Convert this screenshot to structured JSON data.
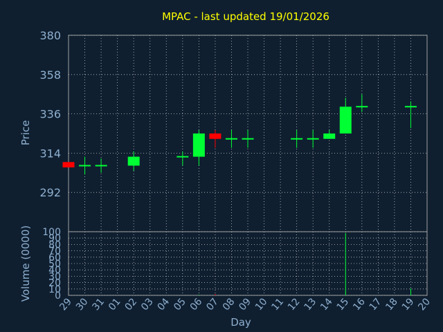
{
  "title": "MPAC - last updated 19/01/2026",
  "chart_data": {
    "type": "candlestick",
    "ylabel": "Price",
    "ylim": [
      270,
      380
    ],
    "yticks": [
      "380",
      "358",
      "336",
      "314",
      "292"
    ],
    "volume_ylabel": "Volume (0000)",
    "volume_ylim": [
      0,
      100
    ],
    "volume_yticks": [
      "100",
      "90",
      "80",
      "70",
      "60",
      "50",
      "40",
      "30",
      "20",
      "10",
      "0"
    ],
    "xlabel": "Day",
    "xticks": [
      "29",
      "30",
      "31",
      "01",
      "02",
      "03",
      "04",
      "05",
      "06",
      "07",
      "08",
      "09",
      "10",
      "11",
      "12",
      "13",
      "14",
      "15",
      "16",
      "17",
      "18",
      "19",
      "20"
    ],
    "candles": [
      {
        "day": "29",
        "open": 309,
        "close": 306,
        "high": 309,
        "low": 306,
        "volume": 0
      },
      {
        "day": "30",
        "open": 307,
        "close": 307,
        "high": 312,
        "low": 302,
        "volume": 0
      },
      {
        "day": "31",
        "open": 307,
        "close": 307,
        "high": 311,
        "low": 303,
        "volume": 0
      },
      {
        "day": "02",
        "open": 307,
        "close": 312,
        "high": 315,
        "low": 304,
        "volume": 0
      },
      {
        "day": "05",
        "open": 312,
        "close": 312,
        "high": 315,
        "low": 307,
        "volume": 0
      },
      {
        "day": "06",
        "open": 312,
        "close": 325,
        "high": 327,
        "low": 307,
        "volume": 1
      },
      {
        "day": "07",
        "open": 325,
        "close": 322,
        "high": 327,
        "low": 317,
        "volume": 2
      },
      {
        "day": "08",
        "open": 322,
        "close": 322,
        "high": 327,
        "low": 317,
        "volume": 0
      },
      {
        "day": "09",
        "open": 322,
        "close": 322,
        "high": 327,
        "low": 317,
        "volume": 0
      },
      {
        "day": "12",
        "open": 322,
        "close": 322,
        "high": 327,
        "low": 317,
        "volume": 0
      },
      {
        "day": "13",
        "open": 322,
        "close": 322,
        "high": 327,
        "low": 317,
        "volume": 0
      },
      {
        "day": "14",
        "open": 322,
        "close": 325,
        "high": 327,
        "low": 322,
        "volume": 0
      },
      {
        "day": "15",
        "open": 325,
        "close": 340,
        "high": 345,
        "low": 325,
        "volume": 98
      },
      {
        "day": "16",
        "open": 340,
        "close": 340,
        "high": 347,
        "low": 337,
        "volume": 0
      },
      {
        "day": "19",
        "open": 340,
        "close": 340,
        "high": 343,
        "low": 328,
        "volume": 11
      }
    ],
    "colors": {
      "up": "#00ff33",
      "down": "#ff0000",
      "background": "#0f1f30",
      "plot_border": "#a0a0a0",
      "grid": "#c8c8c8",
      "text": "#8fb0d0",
      "title": "#ffff00"
    },
    "grid": true
  }
}
